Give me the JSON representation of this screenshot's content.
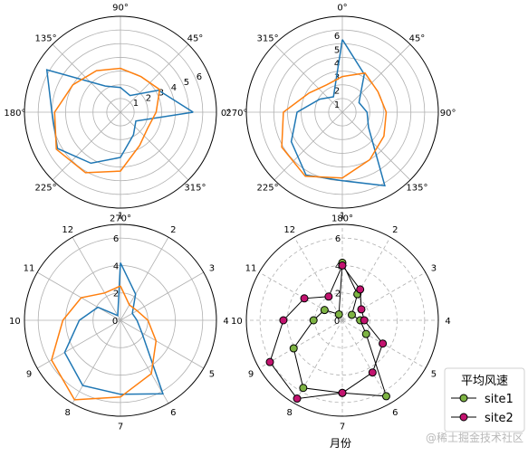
{
  "chart_data": [
    {
      "type": "polar-line",
      "theta_unit": "degrees",
      "theta_zero": "E",
      "theta_direction": "counterclockwise",
      "theta_tick_labels": [
        "0°",
        "45°",
        "90°",
        "135°",
        "180°",
        "225°",
        "270°",
        "315°"
      ],
      "r_ticks": [
        "1",
        "2",
        "3",
        "4",
        "5",
        "6"
      ],
      "r_tick_angle_deg": 22.5,
      "rlim": [
        0,
        7
      ],
      "grid": true,
      "series": [
        {
          "color": "#1f77b4",
          "theta": [
            0,
            30,
            60,
            90,
            120,
            150,
            180,
            210,
            240,
            270,
            300,
            330
          ],
          "r": [
            5.3,
            3.2,
            1.4,
            1.8,
            2.2,
            6.2,
            5.0,
            5.3,
            4.3,
            3.3,
            1.9,
            1.3
          ]
        },
        {
          "color": "#ff7f0e",
          "theta": [
            0,
            30,
            60,
            90,
            120,
            150,
            180,
            210,
            240,
            270,
            300,
            330
          ],
          "r": [
            2.6,
            3.3,
            3.0,
            3.2,
            3.5,
            4.0,
            4.8,
            5.4,
            5.1,
            4.3,
            2.8,
            2.3
          ]
        }
      ]
    },
    {
      "type": "polar-line",
      "theta_unit": "degrees",
      "theta_zero": "N",
      "theta_direction": "clockwise",
      "theta_tick_labels": [
        "0°",
        "45°",
        "90°",
        "135°",
        "180°",
        "225°",
        "270°",
        "315°"
      ],
      "r_ticks": [
        "1",
        "2",
        "3",
        "4",
        "5",
        "6"
      ],
      "r_tick_angle_deg": 0,
      "rlim": [
        0,
        7
      ],
      "grid": true,
      "series": [
        {
          "color": "#1f77b4",
          "theta": [
            0,
            30,
            60,
            90,
            120,
            150,
            180,
            210,
            240,
            270,
            300,
            330
          ],
          "r": [
            5.3,
            3.2,
            1.4,
            1.8,
            2.2,
            6.2,
            5.0,
            5.3,
            4.3,
            3.3,
            1.9,
            1.3
          ]
        },
        {
          "color": "#ff7f0e",
          "theta": [
            0,
            30,
            60,
            90,
            120,
            150,
            180,
            210,
            240,
            270,
            300,
            330
          ],
          "r": [
            2.6,
            3.3,
            3.0,
            3.2,
            3.5,
            4.0,
            4.8,
            5.4,
            5.1,
            4.3,
            2.8,
            2.3
          ]
        }
      ]
    },
    {
      "type": "polar-line",
      "theta_zero": "N",
      "theta_direction": "clockwise",
      "categories": [
        "1",
        "2",
        "3",
        "4",
        "5",
        "6",
        "7",
        "8",
        "9",
        "10",
        "11",
        "12"
      ],
      "r_ticks": [
        "0",
        "2",
        "4",
        "6"
      ],
      "rlim": [
        0,
        7
      ],
      "grid": true,
      "series": [
        {
          "color": "#1f77b4",
          "values": [
            4.2,
            2.2,
            1.0,
            1.2,
            1.8,
            6.2,
            5.4,
            5.5,
            4.7,
            3.0,
            1.9,
            0.4
          ]
        },
        {
          "color": "#ff7f0e",
          "values": [
            2.5,
            1.3,
            1.4,
            2.0,
            3.0,
            4.5,
            5.6,
            6.7,
            5.8,
            4.2,
            3.3,
            2.3
          ]
        }
      ]
    },
    {
      "type": "polar-line",
      "theta_zero": "N",
      "theta_direction": "clockwise",
      "categories": [
        "1",
        "2",
        "3",
        "4",
        "5",
        "6",
        "7",
        "8",
        "9",
        "10",
        "11",
        "12"
      ],
      "r_ticks": [
        "0",
        "2",
        "4",
        "6"
      ],
      "rlim": [
        0,
        7
      ],
      "grid": "dashed",
      "xlabel": "月份",
      "legend": {
        "title": "平均风速",
        "placement": "lower-right"
      },
      "series": [
        {
          "name": "site1",
          "color": "#7db343",
          "marker": "circle",
          "values": [
            4.2,
            2.2,
            0.8,
            1.3,
            2.0,
            6.4,
            5.3,
            5.7,
            4.1,
            2.1,
            1.5,
            0.5
          ]
        },
        {
          "name": "site2",
          "color": "#c2136f",
          "marker": "circle",
          "values": [
            4.0,
            2.6,
            1.6,
            1.6,
            3.4,
            4.4,
            5.3,
            6.6,
            6.1,
            4.3,
            3.2,
            2.0
          ]
        }
      ]
    }
  ],
  "watermark": "@稀土掘金技术社区"
}
